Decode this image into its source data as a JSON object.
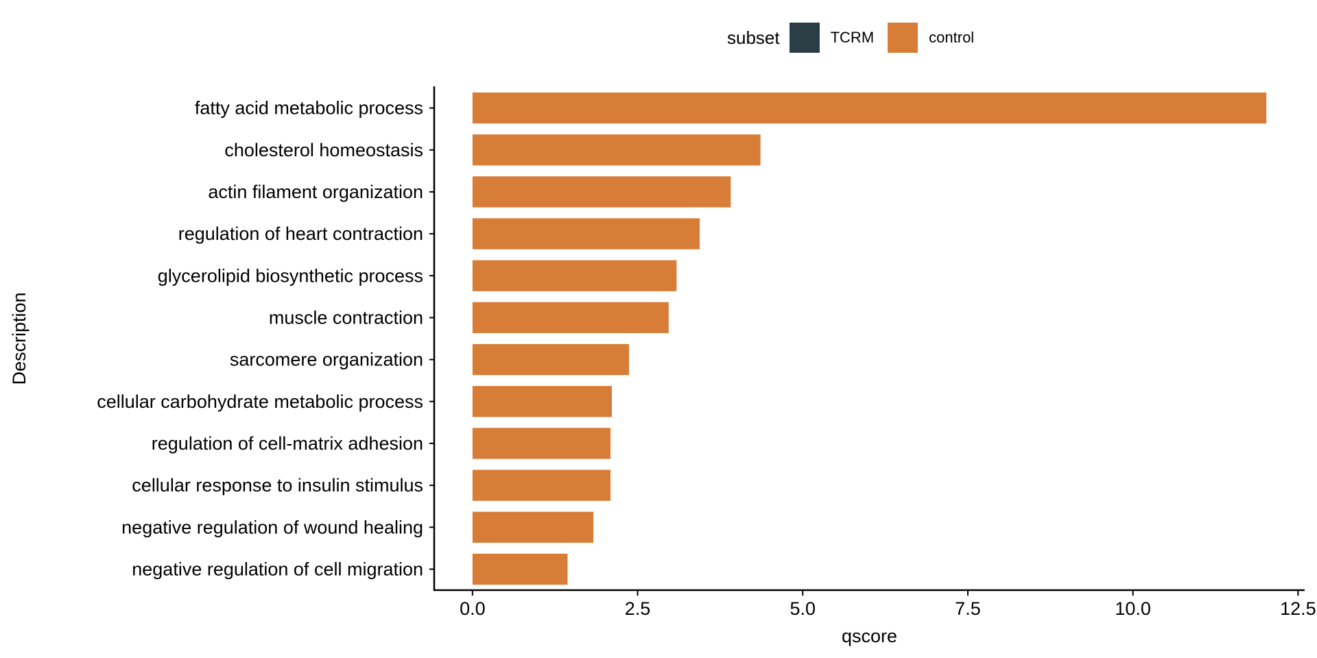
{
  "legend": {
    "title": "subset",
    "items": [
      {
        "label": "TCRM",
        "color": "#2b3d45"
      },
      {
        "label": "control",
        "color": "#d87d38"
      }
    ]
  },
  "chart_data": {
    "type": "bar",
    "orientation": "horizontal",
    "categories": [
      "fatty acid metabolic process",
      "cholesterol homeostasis",
      "actin filament organization",
      "regulation of heart contraction",
      "glycerolipid biosynthetic process",
      "muscle contraction",
      "sarcomere organization",
      "cellular carbohydrate metabolic process",
      "regulation of cell-matrix adhesion",
      "cellular response to insulin stimulus",
      "negative regulation of wound healing",
      "negative regulation of cell migration"
    ],
    "series": [
      {
        "name": "control",
        "color": "#d87d38",
        "values": [
          12.02,
          4.36,
          3.91,
          3.44,
          3.09,
          2.97,
          2.37,
          2.11,
          2.09,
          2.09,
          1.83,
          1.44
        ]
      }
    ],
    "xlabel": "qscore",
    "ylabel": "Description",
    "xlim": [
      -0.58,
      12.6
    ],
    "xticks": [
      0,
      2.5,
      5,
      7.5,
      10,
      12.5
    ],
    "xtick_labels": [
      "0.0",
      "2.5",
      "5.0",
      "7.5",
      "10.0",
      "12.5"
    ],
    "grid": false,
    "legend_position": "top"
  }
}
